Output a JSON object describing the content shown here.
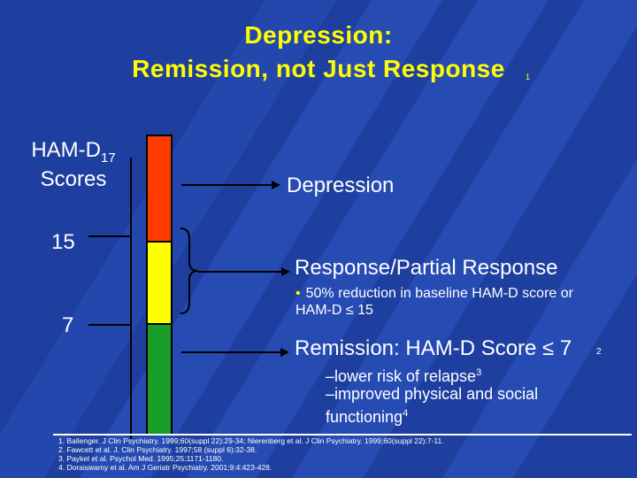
{
  "title": {
    "line1": "Depression:",
    "line2": "Remission, not Just Response",
    "ref_mark": "1",
    "color": "#ffff00"
  },
  "scale": {
    "label_line1": "HAM-D",
    "label_sub": "17",
    "label_line2": "Scores",
    "ticks": [
      "15",
      "7"
    ]
  },
  "bar": {
    "segments": [
      {
        "name": "depression",
        "color": "#ff3c00"
      },
      {
        "name": "response",
        "color": "#ffff00"
      },
      {
        "name": "remission",
        "color": "#1a9e2a"
      }
    ]
  },
  "labels": {
    "depression": "Depression",
    "response": "Response/Partial Response",
    "response_bullet_marker": "•",
    "response_bullet": "50% reduction in baseline HAM-D score or HAM-D ≤ 15",
    "remission": "Remission: HAM-D Score ≤ 7",
    "remission_ref": "2",
    "remission_points": [
      {
        "text": "–lower risk of relapse",
        "ref": "3"
      },
      {
        "text": "–improved physical and social functioning",
        "ref": "4"
      }
    ]
  },
  "references": [
    "1. Ballenger. J Clin Psychiatry. 1999;60(suppl 22):29-34; Nierenberg et al. J Clin Psychiatry. 1999;60(suppl 22):7-11.",
    "2. Fawcett et al. J. Clin Psychiatry. 1997;58 (suppl 6):32-38.",
    "3. Paykel et al. Psychol Med. 1995;25:1171-1180.",
    "4. Doraiswamy et al. Am J Geriatr Psychiatry. 2001;9:4:423-428."
  ]
}
